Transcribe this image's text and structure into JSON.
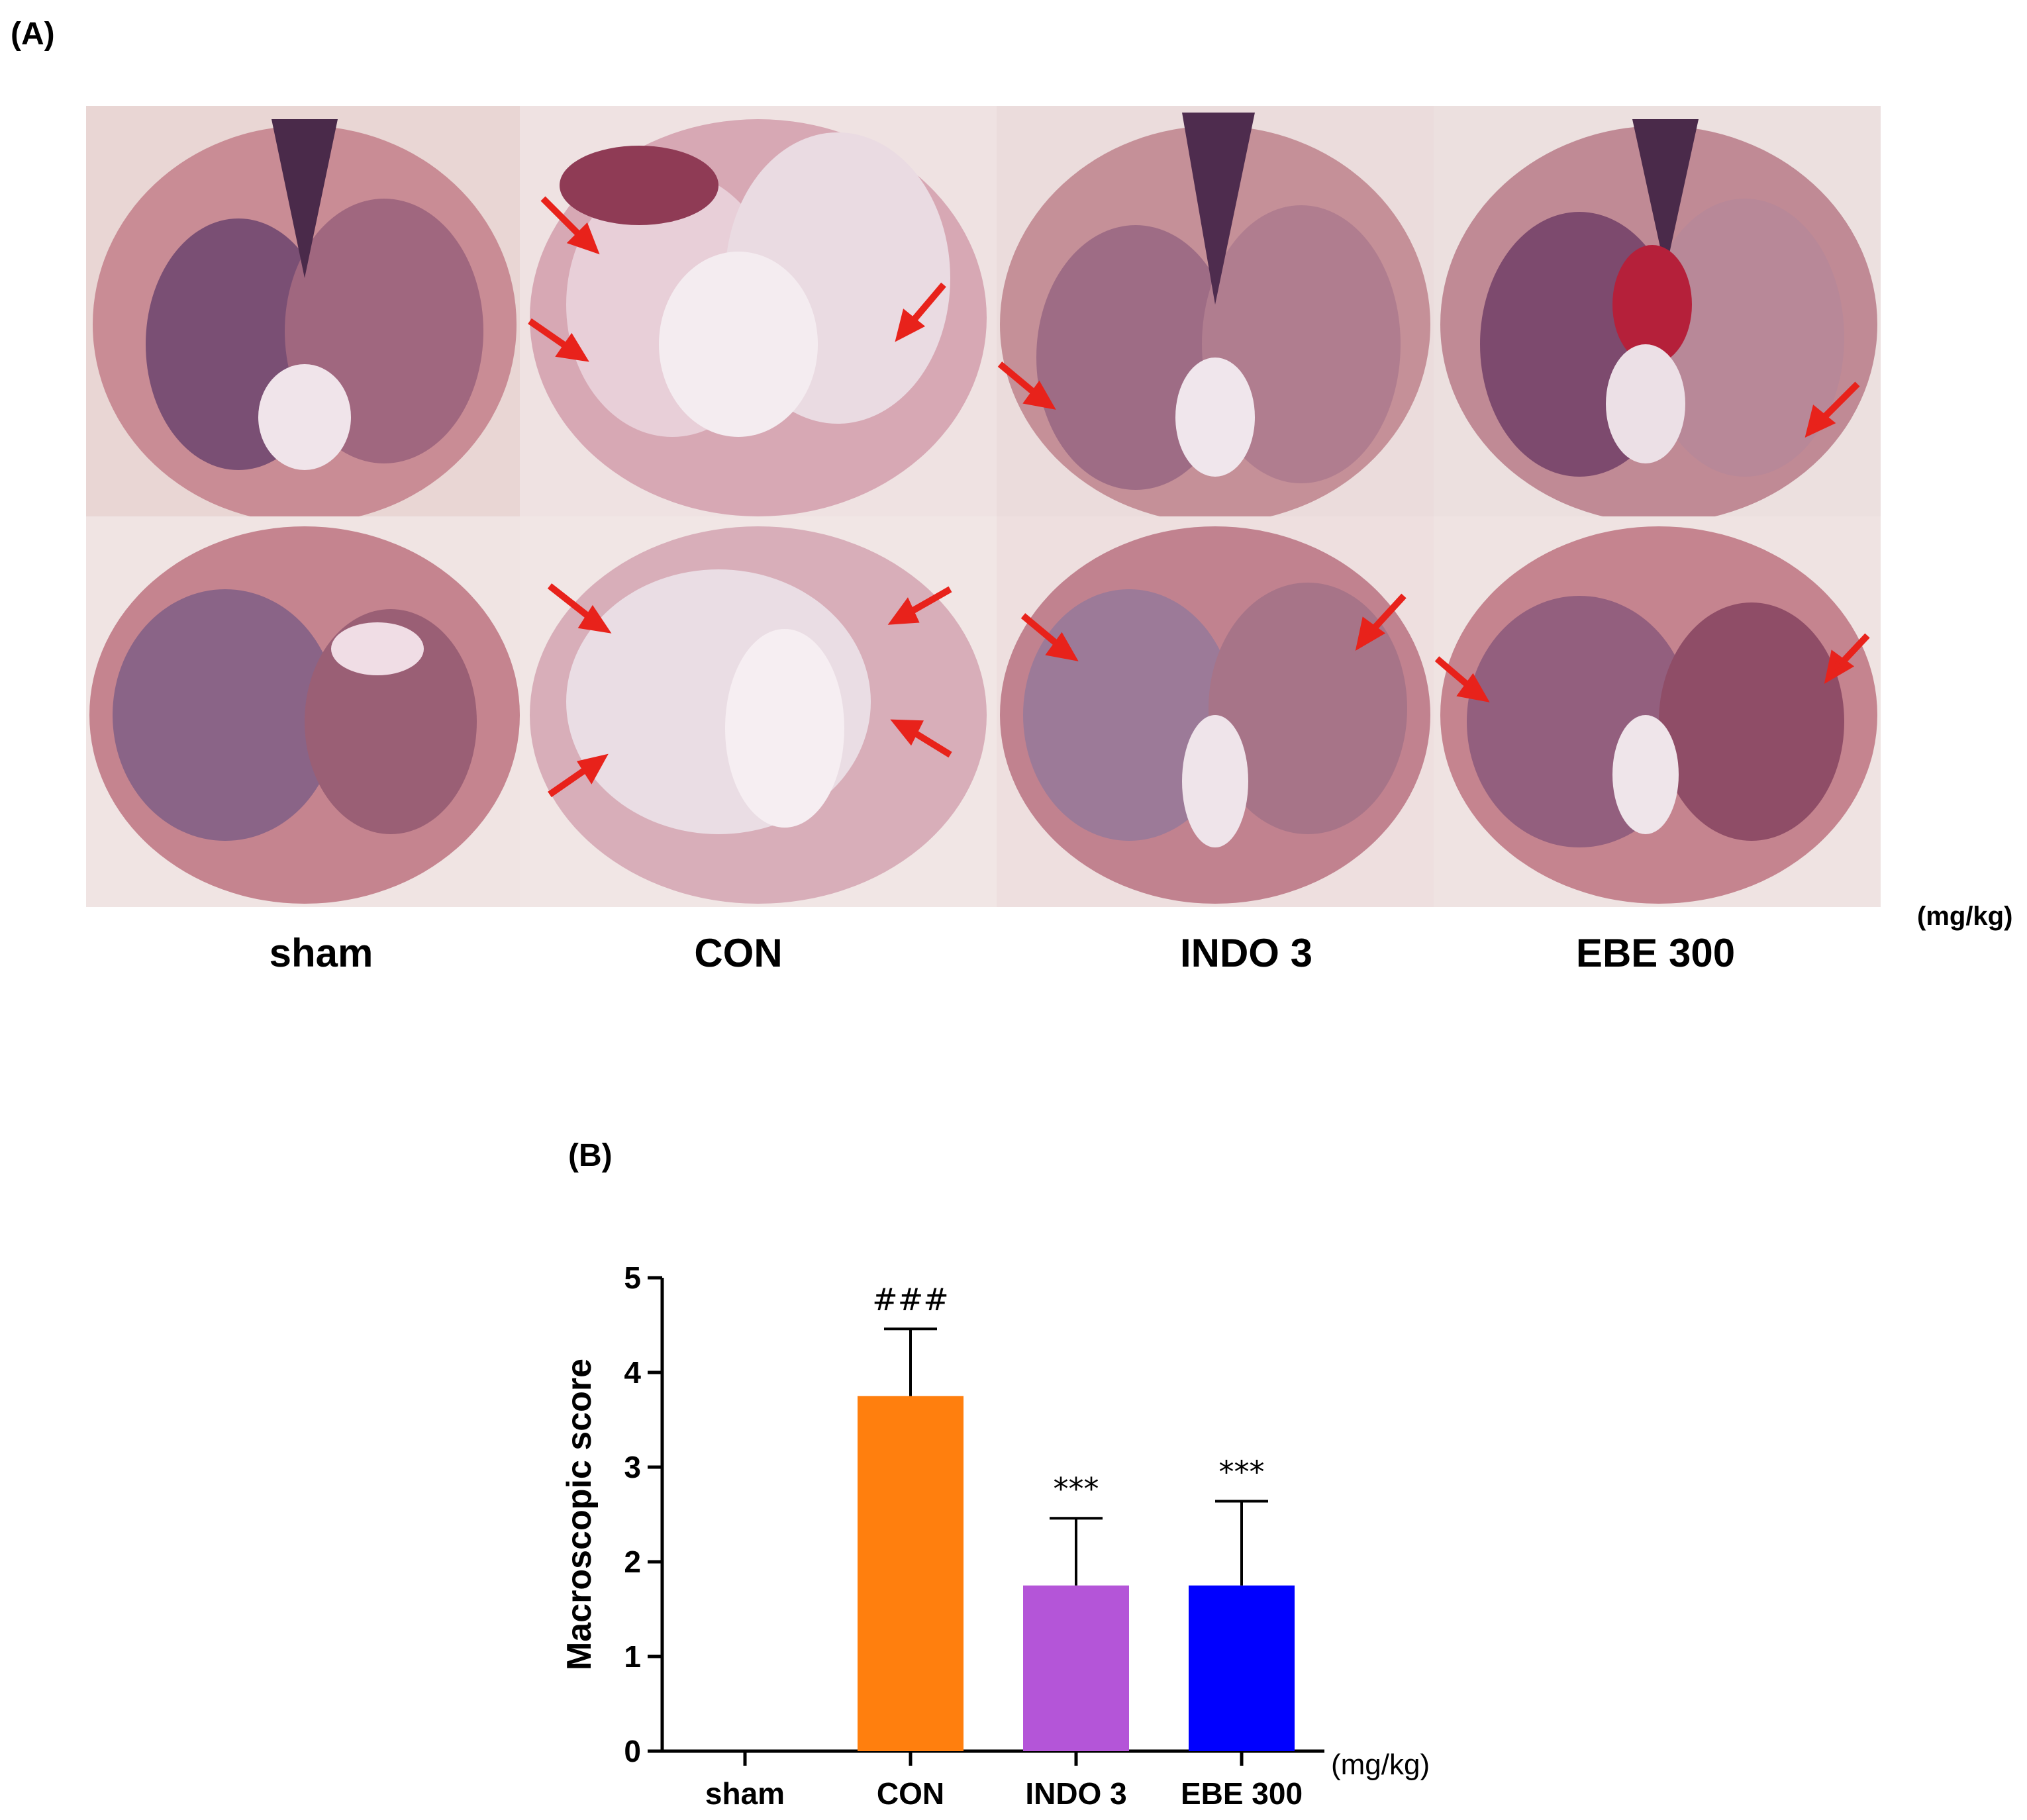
{
  "panel_a": {
    "label": "(A)",
    "groups": [
      "sham",
      "CON",
      "INDO 3",
      "EBE 300"
    ],
    "unit": "(mg/kg)"
  },
  "panel_b": {
    "label": "(B)"
  },
  "chart_data": {
    "type": "bar",
    "categories": [
      "sham",
      "CON",
      "INDO 3",
      "EBE 300"
    ],
    "values": [
      0,
      3.75,
      1.75,
      1.75
    ],
    "errors": [
      0,
      0.71,
      0.71,
      0.89
    ],
    "colors": [
      "#ffffff",
      "#ff7f0e",
      "#b455d8",
      "#0000ff"
    ],
    "annotations": [
      "",
      "###",
      "***",
      "***"
    ],
    "ylabel": "Macroscopic score",
    "xunit": "(mg/kg)",
    "ylim": [
      0,
      5
    ],
    "yticks": [
      0,
      1,
      2,
      3,
      4,
      5
    ]
  }
}
